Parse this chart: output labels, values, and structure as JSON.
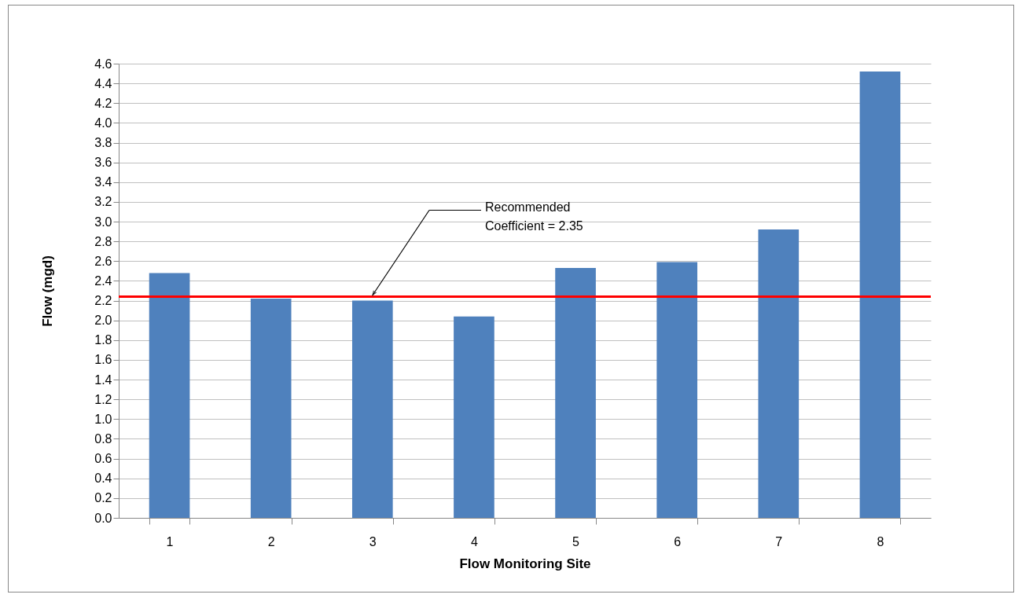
{
  "chart_data": {
    "type": "bar",
    "xlabel": "Flow Monitoring Site",
    "ylabel": "Flow (mgd)",
    "categories": [
      "1",
      "2",
      "3",
      "4",
      "5",
      "6",
      "7",
      "8"
    ],
    "values": [
      2.48,
      2.22,
      2.2,
      2.04,
      2.53,
      2.59,
      2.92,
      4.52
    ],
    "color": "#4f81bd",
    "ylim": [
      0,
      4.6
    ],
    "yticks": [
      {
        "value": 0,
        "label": "0.0"
      },
      0.2,
      0.4,
      0.6,
      0.8,
      {
        "value": 1,
        "label": "1.0"
      },
      1.2,
      1.4,
      1.6,
      1.8,
      {
        "value": 2,
        "label": "2.0"
      },
      2.2,
      2.4,
      2.6,
      2.8,
      {
        "value": 3,
        "label": "3.0"
      },
      3.2,
      3.4,
      3.6,
      3.8,
      {
        "value": 4,
        "label": "4.0"
      },
      4.2,
      4.4,
      4.6
    ],
    "grid": "y",
    "ref_lines": [
      {
        "axis": "y",
        "value": 2.24,
        "color": "#ff0000"
      }
    ],
    "annotations": [
      "Recommended\nCoefficient = 2.35"
    ]
  }
}
